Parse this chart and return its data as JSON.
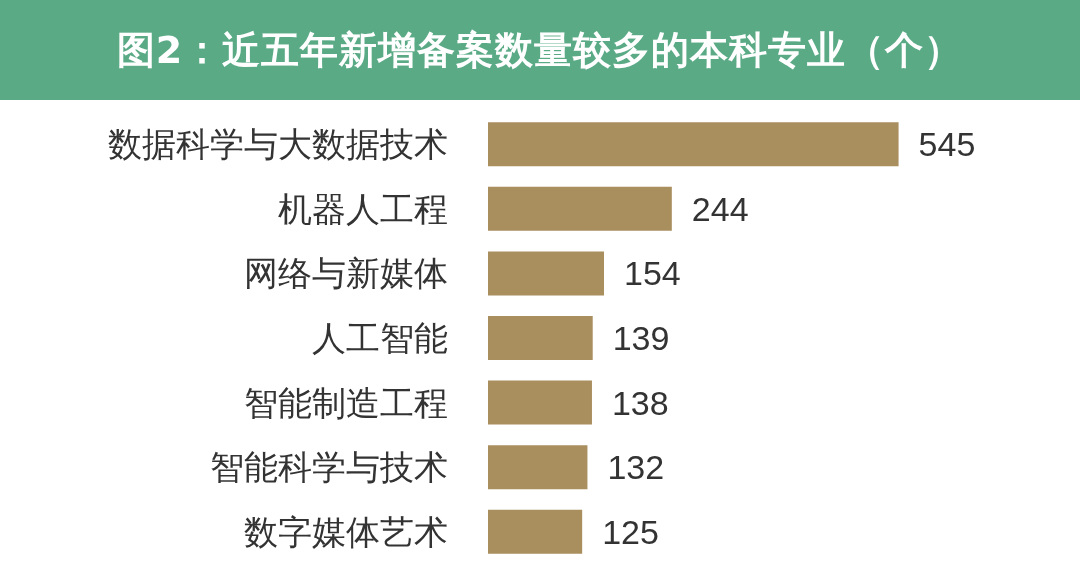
{
  "chart_data": {
    "type": "bar",
    "orientation": "horizontal",
    "title": "图2：近五年新增备案数量较多的本科专业（个）",
    "categories": [
      "数据科学与大数据技术",
      "机器人工程",
      "网络与新媒体",
      "人工智能",
      "智能制造工程",
      "智能科学与技术",
      "数字媒体艺术"
    ],
    "values": [
      545,
      244,
      154,
      139,
      138,
      132,
      125
    ],
    "color": "#a98e5e",
    "data_labels": true
  }
}
